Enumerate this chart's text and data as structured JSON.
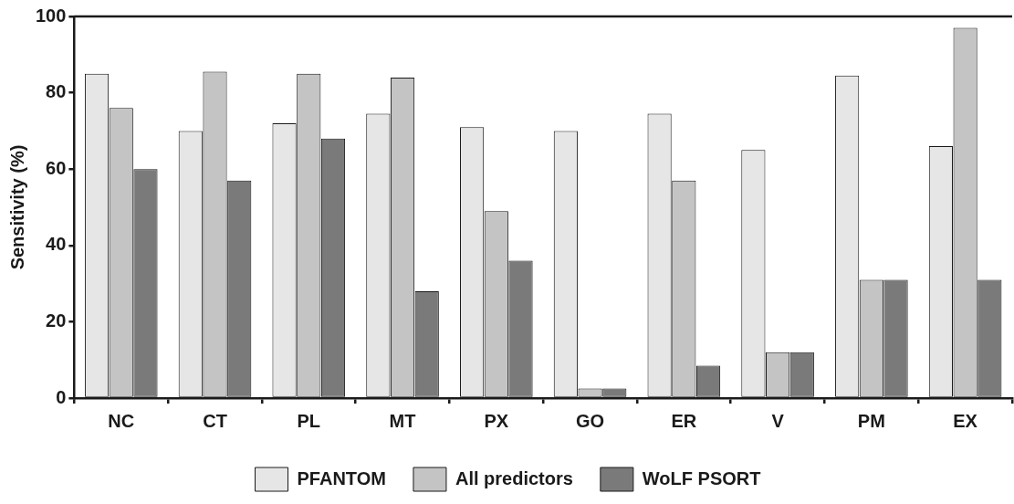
{
  "chart_data": {
    "type": "bar",
    "ylabel": "Sensitivity (%)",
    "categories": [
      "NC",
      "CT",
      "PL",
      "MT",
      "PX",
      "GO",
      "ER",
      "V",
      "PM",
      "EX"
    ],
    "series": [
      {
        "name": "PFANTOM",
        "color": "#e6e6e6",
        "values": [
          85,
          70,
          72,
          74.5,
          71,
          70,
          74.5,
          65,
          84.5,
          66
        ]
      },
      {
        "name": "All predictors",
        "color": "#c4c4c4",
        "values": [
          76,
          85.5,
          85,
          84,
          49,
          2.5,
          57,
          12,
          31,
          97
        ]
      },
      {
        "name": "WoLF PSORT",
        "color": "#7a7a7a",
        "values": [
          60,
          57,
          68,
          28,
          36,
          2.5,
          8.5,
          12,
          31,
          31
        ]
      }
    ],
    "ylim": [
      0,
      100
    ],
    "yticks": [
      0,
      20,
      40,
      60,
      80,
      100
    ],
    "grid": false,
    "legend": "bottom"
  }
}
